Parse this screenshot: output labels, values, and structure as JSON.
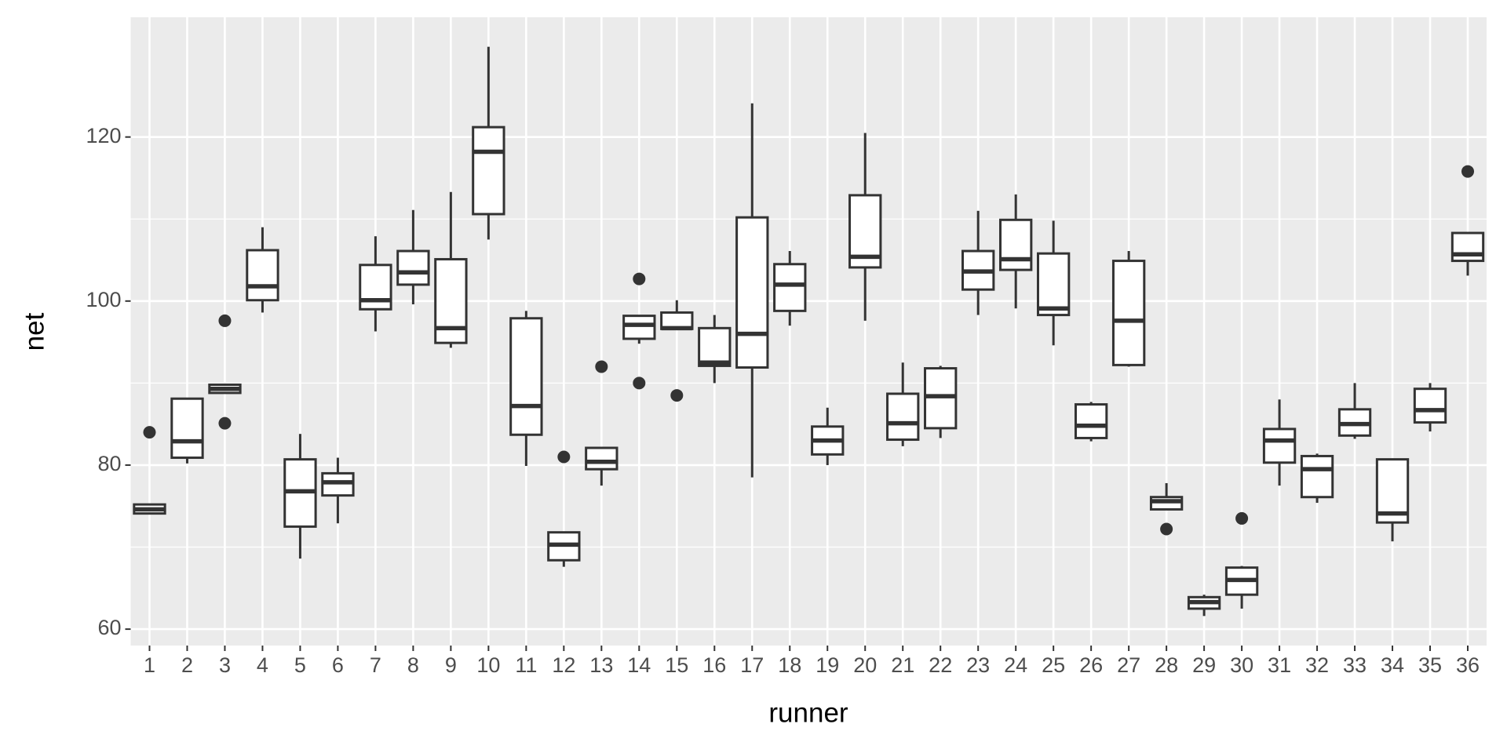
{
  "chart_data": {
    "type": "boxplot",
    "x_label": "runner",
    "y_label": "net",
    "categories": [
      "1",
      "2",
      "3",
      "4",
      "5",
      "6",
      "7",
      "8",
      "9",
      "10",
      "11",
      "12",
      "13",
      "14",
      "15",
      "16",
      "17",
      "18",
      "19",
      "20",
      "21",
      "22",
      "23",
      "24",
      "25",
      "26",
      "27",
      "28",
      "29",
      "30",
      "31",
      "32",
      "33",
      "34",
      "35",
      "36"
    ],
    "boxes": [
      {
        "low": 74.1,
        "q1": 74.1,
        "median": 74.6,
        "q3": 75.2,
        "high": 75.2,
        "outliers": [
          84.0
        ]
      },
      {
        "low": 80.2,
        "q1": 80.9,
        "median": 82.9,
        "q3": 88.1,
        "high": 88.1
      },
      {
        "low": 88.8,
        "q1": 88.8,
        "median": 89.3,
        "q3": 89.8,
        "high": 89.8,
        "outliers": [
          97.6,
          85.1
        ]
      },
      {
        "low": 98.6,
        "q1": 100.1,
        "median": 101.8,
        "q3": 106.2,
        "high": 109.0
      },
      {
        "low": 68.6,
        "q1": 72.5,
        "median": 76.8,
        "q3": 80.7,
        "high": 83.8
      },
      {
        "low": 72.9,
        "q1": 76.3,
        "median": 77.9,
        "q3": 79.0,
        "high": 80.9
      },
      {
        "low": 96.3,
        "q1": 99.0,
        "median": 100.1,
        "q3": 104.4,
        "high": 107.9
      },
      {
        "low": 99.6,
        "q1": 102.0,
        "median": 103.5,
        "q3": 106.1,
        "high": 111.1
      },
      {
        "low": 94.3,
        "q1": 94.9,
        "median": 96.7,
        "q3": 105.1,
        "high": 113.3
      },
      {
        "low": 107.5,
        "q1": 110.6,
        "median": 118.2,
        "q3": 121.2,
        "high": 131.0
      },
      {
        "low": 79.9,
        "q1": 83.7,
        "median": 87.2,
        "q3": 97.9,
        "high": 98.8
      },
      {
        "low": 67.6,
        "q1": 68.4,
        "median": 70.3,
        "q3": 71.8,
        "high": 71.8,
        "outliers": [
          81.0
        ]
      },
      {
        "low": 77.5,
        "q1": 79.5,
        "median": 80.4,
        "q3": 82.1,
        "high": 82.1,
        "outliers": [
          92.0
        ]
      },
      {
        "low": 94.8,
        "q1": 95.4,
        "median": 97.1,
        "q3": 98.2,
        "high": 98.3,
        "outliers": [
          102.7,
          90.0
        ]
      },
      {
        "low": 96.6,
        "q1": 96.6,
        "median": 96.7,
        "q3": 98.6,
        "high": 100.1,
        "outliers": [
          88.5
        ]
      },
      {
        "low": 90.0,
        "q1": 92.1,
        "median": 92.5,
        "q3": 96.7,
        "high": 98.3
      },
      {
        "low": 78.5,
        "q1": 91.9,
        "median": 96.0,
        "q3": 110.2,
        "high": 124.1
      },
      {
        "low": 97.0,
        "q1": 98.8,
        "median": 102.0,
        "q3": 104.5,
        "high": 106.1
      },
      {
        "low": 80.0,
        "q1": 81.3,
        "median": 83.0,
        "q3": 84.7,
        "high": 87.0
      },
      {
        "low": 97.6,
        "q1": 104.1,
        "median": 105.4,
        "q3": 112.9,
        "high": 120.5
      },
      {
        "low": 82.3,
        "q1": 83.1,
        "median": 85.1,
        "q3": 88.7,
        "high": 92.5
      },
      {
        "low": 83.3,
        "q1": 84.5,
        "median": 88.4,
        "q3": 91.8,
        "high": 92.1
      },
      {
        "low": 98.3,
        "q1": 101.4,
        "median": 103.6,
        "q3": 106.1,
        "high": 111.0
      },
      {
        "low": 99.1,
        "q1": 103.8,
        "median": 105.1,
        "q3": 109.9,
        "high": 113.0
      },
      {
        "low": 94.6,
        "q1": 98.3,
        "median": 99.1,
        "q3": 105.8,
        "high": 109.8
      },
      {
        "low": 82.9,
        "q1": 83.3,
        "median": 84.8,
        "q3": 87.4,
        "high": 87.7
      },
      {
        "low": 92.0,
        "q1": 92.2,
        "median": 97.6,
        "q3": 104.9,
        "high": 106.1
      },
      {
        "low": 74.6,
        "q1": 74.6,
        "median": 75.6,
        "q3": 76.1,
        "high": 77.8,
        "outliers": [
          72.2
        ]
      },
      {
        "low": 61.6,
        "q1": 62.5,
        "median": 63.3,
        "q3": 63.9,
        "high": 64.2
      },
      {
        "low": 62.5,
        "q1": 64.2,
        "median": 66.0,
        "q3": 67.5,
        "high": 67.7,
        "outliers": [
          73.5
        ]
      },
      {
        "low": 77.5,
        "q1": 80.3,
        "median": 83.0,
        "q3": 84.4,
        "high": 88.0
      },
      {
        "low": 75.4,
        "q1": 76.1,
        "median": 79.5,
        "q3": 81.1,
        "high": 81.4
      },
      {
        "low": 83.2,
        "q1": 83.6,
        "median": 85.0,
        "q3": 86.8,
        "high": 90.0
      },
      {
        "low": 70.7,
        "q1": 73.0,
        "median": 74.1,
        "q3": 80.7,
        "high": 80.7
      },
      {
        "low": 84.1,
        "q1": 85.2,
        "median": 86.7,
        "q3": 89.3,
        "high": 90.0
      },
      {
        "low": 103.1,
        "q1": 104.9,
        "median": 105.7,
        "q3": 108.3,
        "high": 108.3,
        "outliers": [
          115.8
        ]
      }
    ],
    "ylim": [
      58.0,
      134.6
    ],
    "yticks": [
      60,
      80,
      100,
      120
    ],
    "grid": true,
    "panel_color": "#ebebeb",
    "box_fill": "#ffffff",
    "color": "#333333"
  }
}
